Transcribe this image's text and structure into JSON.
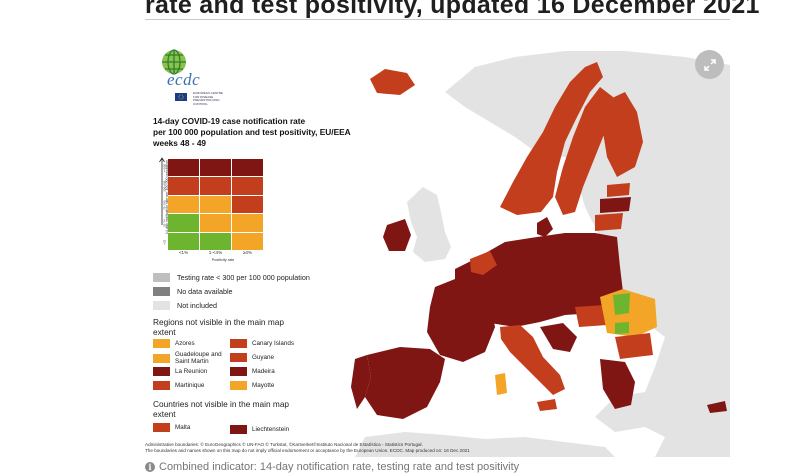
{
  "article": {
    "headline": "rate and test positivity, updated 16 December 2021",
    "caption": "Combined indicator: 14-day notification rate, testing rate and test positivity"
  },
  "logo": {
    "text": "ecdc",
    "subtext": "EUROPEAN CENTRE FOR DISEASE PREVENTION AND CONTROL"
  },
  "colors": {
    "dark_red": "#7f1613",
    "red": "#c33e1c",
    "orange": "#f2a526",
    "green": "#6eb52f",
    "testing_low": "#bfbfbf",
    "no_data": "#808080",
    "not_included": "#e3e3e3",
    "sea": "#ffffff"
  },
  "legend": {
    "title_lines": [
      "14-day COVID-19 case notification rate",
      "per 100 000 population and test positivity, EU/EEA",
      "weeks 48 - 49"
    ],
    "y_axis_label": "14-day notification rate per 100 000 population",
    "x_axis_label": "Positivity rate",
    "row_labels": [
      ">=500",
      "200-499",
      "75-199",
      "25-74",
      "<25"
    ],
    "col_labels": [
      "<1%",
      "1-<4%",
      "≥4%"
    ],
    "matrix": [
      [
        "dark_red",
        "dark_red",
        "dark_red"
      ],
      [
        "red",
        "red",
        "red"
      ],
      [
        "orange",
        "orange",
        "red"
      ],
      [
        "green",
        "orange",
        "orange"
      ],
      [
        "green",
        "green",
        "orange"
      ]
    ],
    "status_items": [
      {
        "label": "Testing rate < 300 per 100 000 population",
        "color": "testing_low"
      },
      {
        "label": "No data available",
        "color": "no_data"
      },
      {
        "label": "Not included",
        "color": "not_included"
      }
    ]
  },
  "regions_section": {
    "title": "Regions not visible in the main map extent",
    "items": [
      {
        "label": "Azores",
        "color": "orange"
      },
      {
        "label": "Canary Islands",
        "color": "red"
      },
      {
        "label": "Guadeloupe and Saint Martin",
        "color": "orange"
      },
      {
        "label": "Guyane",
        "color": "red"
      },
      {
        "label": "La Reunion",
        "color": "dark_red"
      },
      {
        "label": "Madeira",
        "color": "dark_red"
      },
      {
        "label": "Martinique",
        "color": "red"
      },
      {
        "label": "Mayotte",
        "color": "orange"
      }
    ]
  },
  "countries_section": {
    "title": "Countries not visible in the main map extent",
    "items": [
      {
        "label": "Malta",
        "color": "red"
      },
      {
        "label": "Liechtenstein",
        "color": "dark_red"
      }
    ]
  },
  "credits": [
    "Administrative boundaries: © EuroGeographics © UN-FAO © Turkstat, ©Kartverket©Instituto Nacional de Estatística - Statistics Portugal.",
    "The boundaries and names shown on this map do not imply official endorsement or acceptance by the European Union. ECDC. Map produced on: 16 Dec 2021"
  ]
}
